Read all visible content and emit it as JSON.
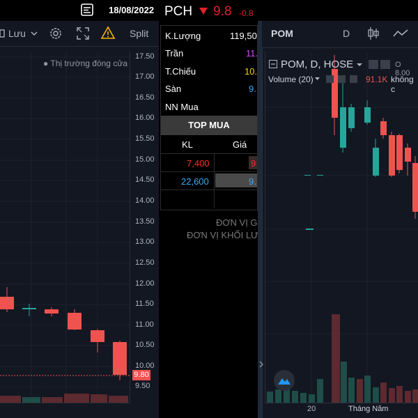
{
  "topbar": {
    "date": "18/08/2022"
  },
  "left": {
    "save_label": "Lưu",
    "split_label": "Split",
    "status": "● Thị trường đóng cửa",
    "price_axis": [
      "17.50",
      "17.00",
      "16.50",
      "16.00",
      "15.50",
      "15.00",
      "14.50",
      "14.00",
      "13.50",
      "13.00",
      "12.50",
      "12.00",
      "11.50",
      "11.00",
      "10.50",
      "10.00",
      "9.50"
    ],
    "last_price_tag": "9.80",
    "colors": {
      "up": "#26a69a",
      "down": "#ef5350",
      "bg": "#131722"
    }
  },
  "middle": {
    "symbol": "PCH",
    "price": "9.8",
    "change": "-0.8",
    "rows": [
      {
        "label": "K.Lượng",
        "value": "119,50",
        "color": "#ffffff"
      },
      {
        "label": "Trần",
        "value": "11.",
        "color": "#d14bff"
      },
      {
        "label": "T.Chiếu",
        "value": "10.",
        "color": "#f5d400"
      },
      {
        "label": "Sàn",
        "value": "9.",
        "color": "#3fa9f5"
      },
      {
        "label": "NN Mua",
        "value": "",
        "color": "#ffffff"
      }
    ],
    "top_mua": "TOP MUA",
    "headers": {
      "kl": "KL",
      "gia": "Giá"
    },
    "orders": [
      {
        "kl": "7,400",
        "gia": "9",
        "kl_color": "#ff2a2a",
        "gia_color": "#ff2a2a"
      },
      {
        "kl": "22,600",
        "gia": "9.",
        "kl_color": "#3fa9f5",
        "gia_color": "#3fa9f5"
      }
    ],
    "unit1": "ĐƠN VỊ GI",
    "unit2": "ĐƠN VỊ KHỐI LƯ"
  },
  "right": {
    "symbol": "POM",
    "interval": "D",
    "legend": "POM, D, HOSE",
    "ohlc": "O 8.00",
    "volume_label": "Volume (20)",
    "volume_value": "91.1K",
    "volume_suffix": "không c",
    "x_labels": [
      "20",
      "Tháng Năm"
    ]
  }
}
